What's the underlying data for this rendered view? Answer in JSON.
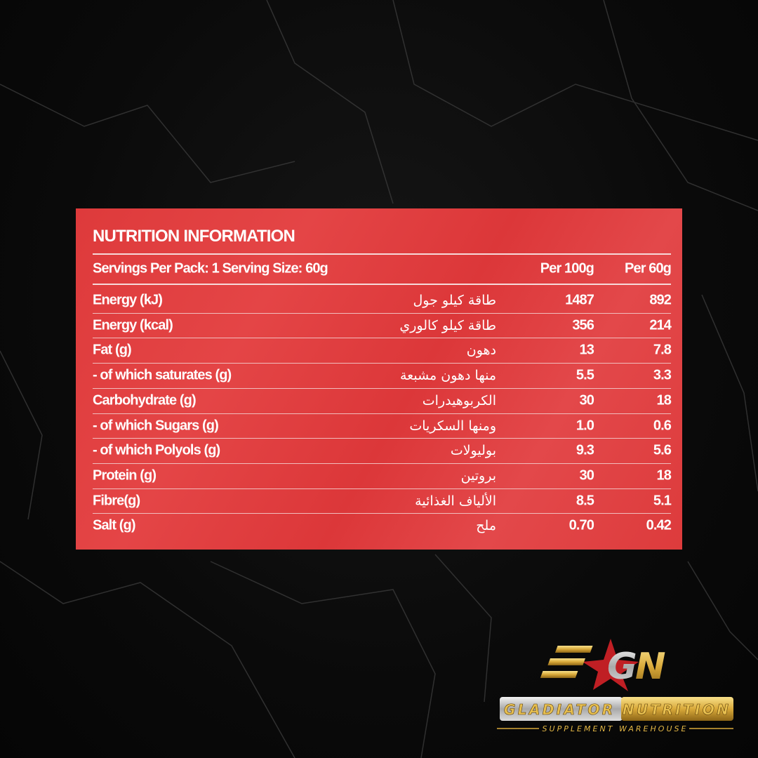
{
  "title": "NUTRITION INFORMATION",
  "header": {
    "servings": "Servings Per Pack: 1  Serving Size: 60g",
    "col1": "Per 100g",
    "col2": "Per 60g"
  },
  "rows": [
    {
      "en": "Energy (kJ)",
      "ar": "طاقة كيلو جول",
      "per100": "1487",
      "per60": "892"
    },
    {
      "en": "Energy (kcal)",
      "ar": "طاقة كيلو كالوري",
      "per100": "356",
      "per60": "214"
    },
    {
      "en": "Fat (g)",
      "ar": "دهون",
      "per100": "13",
      "per60": "7.8"
    },
    {
      "en": "- of which saturates (g)",
      "ar": "منها دهون مشبعة",
      "per100": "5.5",
      "per60": "3.3"
    },
    {
      "en": "Carbohydrate (g)",
      "ar": "الكربوهيدرات",
      "per100": "30",
      "per60": "18"
    },
    {
      "en": "- of which Sugars (g)",
      "ar": "ومنها السكريات",
      "per100": "1.0",
      "per60": "0.6"
    },
    {
      "en": "- of which Polyols (g)",
      "ar": "بوليولات",
      "per100": "9.3",
      "per60": "5.6"
    },
    {
      "en": "Protein (g)",
      "ar": "بروتين",
      "per100": "30",
      "per60": "18"
    },
    {
      "en": "Fibre(g)",
      "ar": "الألياف الغذائية",
      "per100": "8.5",
      "per60": "5.1"
    },
    {
      "en": "Salt (g)",
      "ar": "ملح",
      "per100": "0.70",
      "per60": "0.42"
    }
  ],
  "logo": {
    "mark": "GN",
    "name": "GLADIATOR NUTRITION",
    "tagline": "SUPPLEMENT WAREHOUSE"
  },
  "colors": {
    "panel": "#de3a3b",
    "background": "#0a0a0a",
    "gold": "#d9a93a"
  }
}
